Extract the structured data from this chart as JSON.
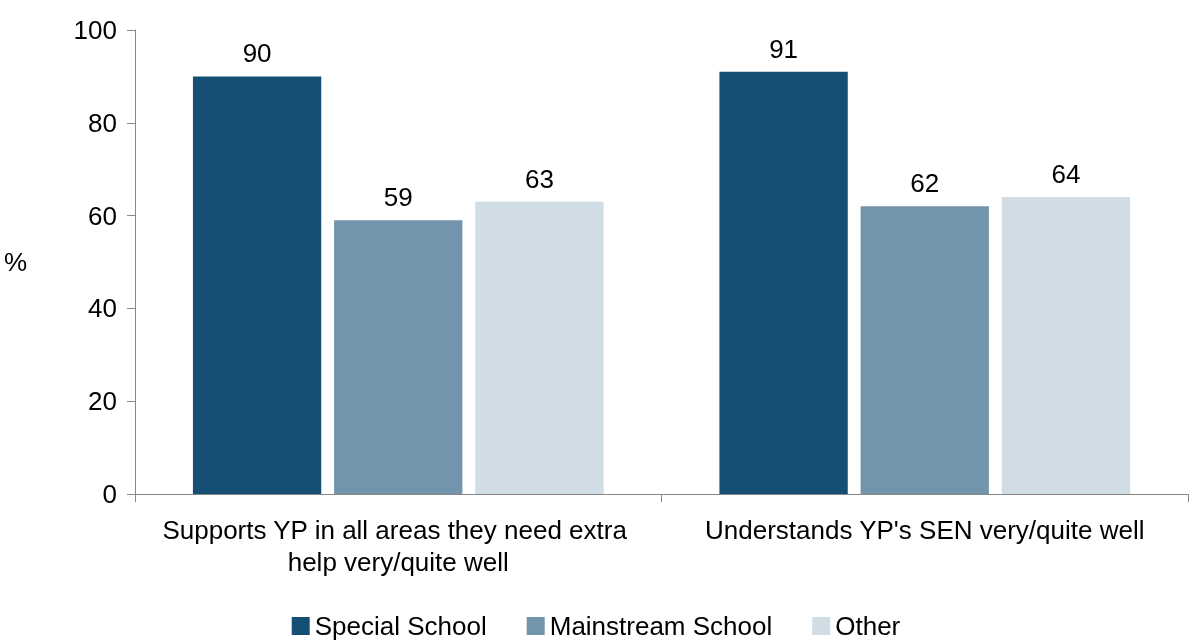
{
  "chart_data": {
    "type": "bar",
    "ylabel": "%",
    "categories": [
      "Supports YP in all areas they need extra help very/quite well",
      "Understands YP's SEN very/quite well"
    ],
    "series": [
      {
        "name": "Special School",
        "color": "#154f73",
        "values": [
          90,
          91
        ]
      },
      {
        "name": "Mainstream School",
        "color": "#7295ad",
        "values": [
          59,
          62
        ]
      },
      {
        "name": "Other",
        "color": "#d0dde5",
        "values": [
          63,
          64
        ]
      }
    ],
    "ylim": [
      0,
      100
    ],
    "yticks": [
      0,
      20,
      40,
      60,
      80,
      100
    ],
    "grid": false,
    "legend": "bottom",
    "data_labels": true
  }
}
